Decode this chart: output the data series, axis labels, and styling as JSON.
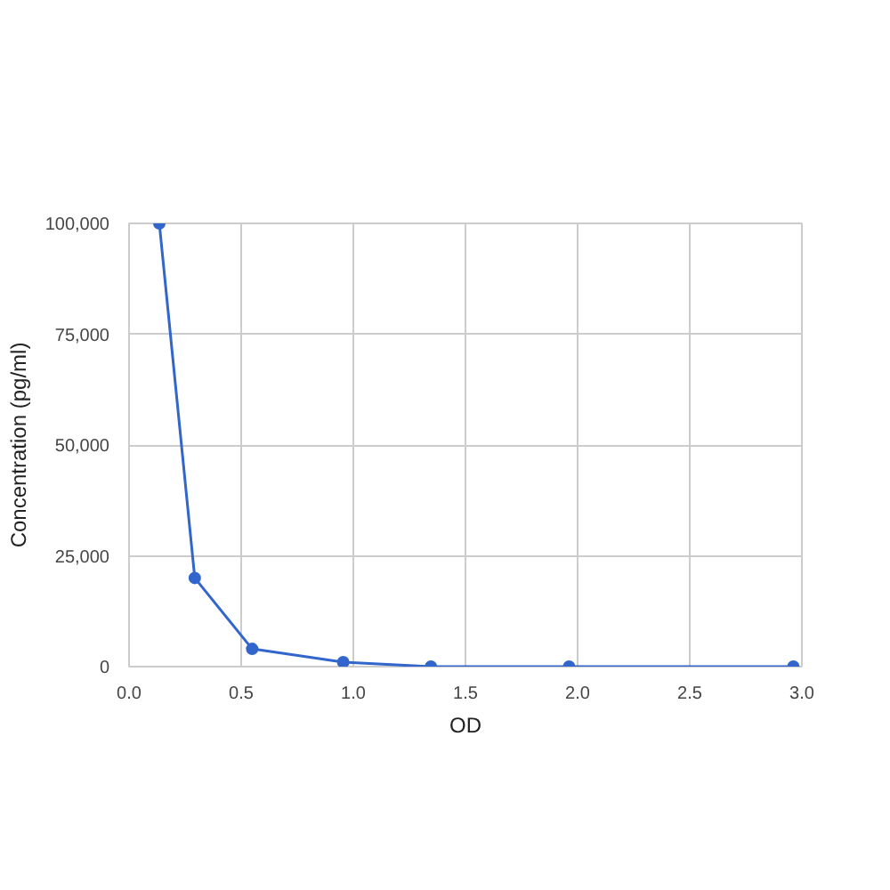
{
  "chart_data": {
    "type": "line",
    "xlabel": "OD",
    "ylabel": "Concentration (pg/ml)",
    "x": [
      0.135,
      0.293,
      0.549,
      0.955,
      1.346,
      1.962,
      2.962
    ],
    "series": [
      {
        "color": "#3366cc",
        "values": [
          100000,
          20000,
          4000,
          1000,
          0,
          0,
          0
        ]
      }
    ],
    "xlim": [
      0,
      3
    ],
    "xticks": [
      {
        "value": 0,
        "label": "0.0"
      },
      {
        "value": 0.5,
        "label": "0.5"
      },
      {
        "value": 1,
        "label": "1.0"
      },
      {
        "value": 1.5,
        "label": "1.5"
      },
      {
        "value": 2,
        "label": "2.0"
      },
      {
        "value": 2.5,
        "label": "2.5"
      },
      {
        "value": 3,
        "label": "3.0"
      }
    ],
    "ylim": [
      0,
      100000
    ],
    "yticks": [
      {
        "value": 0,
        "label": "0"
      },
      {
        "value": 25000,
        "label": "25,000"
      },
      {
        "value": 50000,
        "label": "50,000"
      },
      {
        "value": 75000,
        "label": "75,000"
      },
      {
        "value": 100000,
        "label": "100,000"
      }
    ],
    "grid": true,
    "marker": "circle",
    "line_style": "solid"
  }
}
